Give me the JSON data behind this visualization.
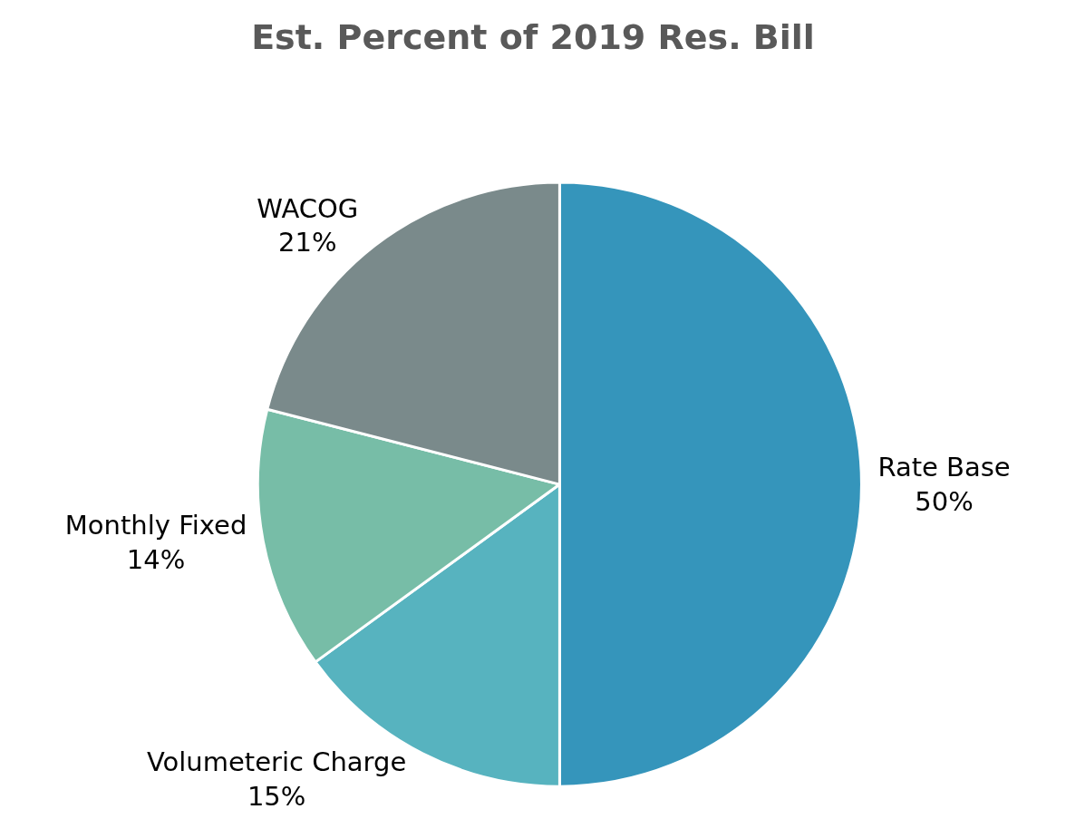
{
  "chart_data": {
    "type": "pie",
    "title": "Est. Percent of 2019 Res. Bill",
    "categories": [
      "Rate Base",
      "Volumeteric Charge",
      "Monthly Fixed",
      "WACOG"
    ],
    "values": [
      50,
      15,
      14,
      21
    ],
    "value_labels": [
      "50%",
      "15%",
      "14%",
      "21%"
    ],
    "colors": [
      "#3595bb",
      "#57b3bf",
      "#77bda7",
      "#7a8a8b"
    ],
    "legend": false
  }
}
